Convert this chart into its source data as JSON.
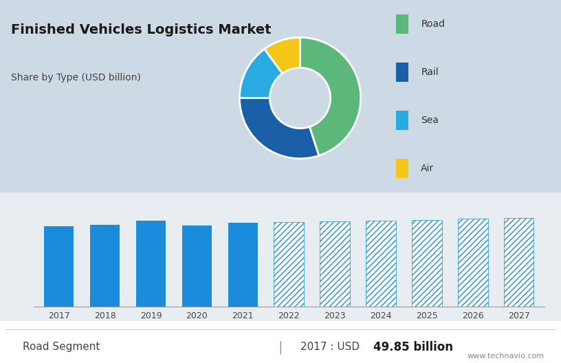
{
  "title": "Finished Vehicles Logistics Market",
  "subtitle": "Share by Type (USD billion)",
  "donut_labels": [
    "Road",
    "Rail",
    "Sea",
    "Air"
  ],
  "donut_values": [
    45,
    30,
    15,
    10
  ],
  "donut_colors": [
    "#5cb87a",
    "#1a5fa8",
    "#29abe2",
    "#f5c518"
  ],
  "bar_years": [
    2017,
    2018,
    2019,
    2020,
    2021,
    2022,
    2023,
    2024,
    2025,
    2026,
    2027
  ],
  "bar_values": [
    49.85,
    51.0,
    53.5,
    50.5,
    52.0,
    52.5,
    53.0,
    53.5,
    54.0,
    54.5,
    55.0
  ],
  "bar_solid_color": "#1a8cdb",
  "bar_hatch_facecolor": "#ffffff",
  "bar_hatch_edgecolor": "#1a8cdb",
  "top_panel_bg": "#cdd9e5",
  "bottom_panel_bg": "#e8edf2",
  "footer_bg": "#ffffff",
  "footer_text_left": "Road Segment",
  "footer_text_right_normal": "2017 : USD ",
  "footer_text_right_bold": "49.85 billion",
  "footer_url": "www.technavio.com",
  "grid_color": "#b0bec5",
  "divider_year": 2021,
  "title_fontsize": 14,
  "subtitle_fontsize": 10,
  "legend_fontsize": 10,
  "bar_label_fontsize": 9,
  "footer_fontsize": 11
}
